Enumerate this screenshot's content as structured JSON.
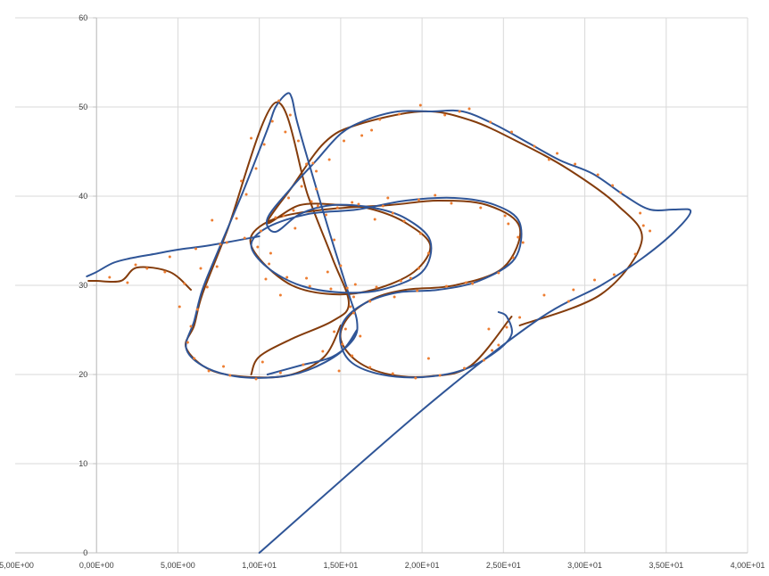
{
  "chart_data": {
    "type": "scatter",
    "title": "",
    "xlabel": "",
    "ylabel": "",
    "xlim": [
      -5,
      40
    ],
    "ylim": [
      0,
      60
    ],
    "grid": true,
    "legend": "none",
    "x_ticks": [
      -5,
      0,
      5,
      10,
      15,
      20,
      25,
      30,
      35,
      40
    ],
    "x_tick_labels": [
      "-5,00E+00",
      "0,00E+00",
      "5,00E+00",
      "1,00E+01",
      "1,50E+01",
      "2,00E+01",
      "2,50E+01",
      "3,00E+01",
      "3,50E+01",
      "4,00E+01"
    ],
    "y_ticks": [
      0,
      10,
      20,
      30,
      40,
      50,
      60
    ],
    "y_tick_labels": [
      "0",
      "10",
      "20",
      "30",
      "40",
      "50",
      "60"
    ],
    "colors": {
      "points": "#ed7d31",
      "smooth_line": "#843c0c",
      "noisy_line": "#2f5597",
      "grid": "#d9d9d9",
      "axis": "#bfbfbf"
    },
    "series": [
      {
        "style": "line",
        "color": "#843c0c",
        "points": [
          [
            26,
            25.5
          ],
          [
            31,
            29
          ],
          [
            33.5,
            35
          ],
          [
            32,
            39
          ],
          [
            29,
            43
          ],
          [
            26,
            46
          ],
          [
            23,
            48.5
          ],
          [
            20,
            49.5
          ],
          [
            16,
            48
          ],
          [
            14,
            46
          ],
          [
            12,
            41
          ],
          [
            10.5,
            37
          ],
          [
            12.5,
            39
          ],
          [
            15,
            39
          ],
          [
            17,
            38.5
          ],
          [
            19,
            37
          ],
          [
            20.5,
            34.5
          ],
          [
            19.5,
            31.5
          ],
          [
            17,
            29.5
          ],
          [
            14.5,
            29
          ],
          [
            12,
            30
          ],
          [
            10,
            33
          ],
          [
            9.5,
            35.5
          ],
          [
            11,
            37.5
          ],
          [
            14,
            38.5
          ],
          [
            18,
            39
          ],
          [
            21,
            39.5
          ],
          [
            24,
            39
          ],
          [
            26,
            36.5
          ],
          [
            25,
            32
          ],
          [
            22,
            30
          ],
          [
            19,
            29.5
          ],
          [
            17,
            28.5
          ],
          [
            15.5,
            26.5
          ],
          [
            15,
            24
          ],
          [
            16,
            21.5
          ],
          [
            18,
            20
          ],
          [
            20.5,
            19.8
          ],
          [
            23,
            21
          ],
          [
            25.5,
            26.5
          ],
          [
            null,
            null
          ],
          [
            15,
            25.5
          ],
          [
            14,
            22
          ],
          [
            12,
            20
          ],
          [
            9.5,
            19.7
          ],
          [
            7,
            20.5
          ],
          [
            5.5,
            23
          ],
          [
            6,
            25.5
          ],
          [
            6.5,
            29
          ],
          [
            8,
            36
          ],
          [
            11,
            50.5
          ],
          [
            13,
            40
          ],
          [
            14.5,
            33
          ],
          [
            15.5,
            28
          ],
          [
            14.5,
            26
          ],
          [
            12,
            24
          ],
          [
            10,
            22
          ],
          [
            9.5,
            20
          ],
          [
            null,
            null
          ],
          [
            5.8,
            29.5
          ],
          [
            4.5,
            31.5
          ],
          [
            2.5,
            32
          ],
          [
            1.5,
            30.5
          ],
          [
            0,
            30.5
          ],
          [
            -0.5,
            30.5
          ]
        ]
      },
      {
        "style": "line",
        "color": "#2f5597",
        "points": [
          [
            10,
            0
          ],
          [
            20,
            16
          ],
          [
            27,
            26
          ],
          [
            31,
            30
          ],
          [
            33.5,
            33
          ],
          [
            35.5,
            36
          ],
          [
            36.5,
            38.3
          ],
          [
            35.5,
            38.5
          ],
          [
            34,
            38.5
          ],
          [
            32.5,
            40
          ],
          [
            30.5,
            42.5
          ],
          [
            28.5,
            44
          ],
          [
            26.5,
            46
          ],
          [
            24.5,
            48
          ],
          [
            22.5,
            49.5
          ],
          [
            20.5,
            49.5
          ],
          [
            18.5,
            49.5
          ],
          [
            16.5,
            48.5
          ],
          [
            15,
            47
          ],
          [
            13.5,
            44
          ],
          [
            12,
            41
          ],
          [
            10.5,
            37.5
          ],
          [
            11,
            36
          ],
          [
            12.5,
            38
          ],
          [
            14.5,
            39
          ],
          [
            17,
            38.7
          ],
          [
            19,
            37.5
          ],
          [
            20.5,
            35
          ],
          [
            20,
            31.5
          ],
          [
            17.5,
            29.5
          ],
          [
            15,
            29.2
          ],
          [
            12.5,
            30
          ],
          [
            10.5,
            32
          ],
          [
            9.5,
            34.5
          ],
          [
            10.5,
            36.5
          ],
          [
            13,
            38
          ],
          [
            16,
            38.5
          ],
          [
            19,
            39.5
          ],
          [
            22,
            39.8
          ],
          [
            24.5,
            39
          ],
          [
            26,
            37
          ],
          [
            25.7,
            33
          ],
          [
            23.5,
            30.5
          ],
          [
            21,
            29.5
          ],
          [
            18.5,
            29.2
          ],
          [
            16.5,
            28
          ],
          [
            15.2,
            26
          ],
          [
            15,
            23.5
          ],
          [
            15.7,
            21.3
          ],
          [
            17.5,
            20
          ],
          [
            20,
            19.7
          ],
          [
            22.5,
            20.5
          ],
          [
            24.5,
            22.5
          ],
          [
            25.5,
            24.5
          ],
          [
            25.2,
            26.5
          ],
          [
            24.7,
            27
          ],
          [
            null,
            null
          ],
          [
            16,
            25
          ],
          [
            15,
            22.5
          ],
          [
            13,
            20.5
          ],
          [
            11,
            19.7
          ],
          [
            8.5,
            19.8
          ],
          [
            6.5,
            21
          ],
          [
            5.5,
            23
          ],
          [
            6,
            26
          ],
          [
            6.5,
            29.5
          ],
          [
            7.5,
            34
          ],
          [
            9,
            40.5
          ],
          [
            10.5,
            47.5
          ],
          [
            11,
            50
          ],
          [
            11.7,
            51.5
          ],
          [
            12,
            51
          ],
          [
            12.3,
            48.5
          ],
          [
            13,
            44
          ],
          [
            14.3,
            36
          ],
          [
            15.5,
            29
          ],
          [
            16,
            26
          ],
          [
            15.8,
            24
          ],
          [
            14.5,
            22
          ],
          [
            12.5,
            21
          ],
          [
            10.5,
            20
          ],
          [
            null,
            null
          ],
          [
            10,
            35.5
          ],
          [
            7,
            34.5
          ],
          [
            5,
            34
          ],
          [
            3.5,
            33.5
          ],
          [
            2,
            33
          ],
          [
            1,
            32.5
          ],
          [
            0,
            31.5
          ],
          [
            -0.6,
            31
          ]
        ]
      },
      {
        "style": "points",
        "color": "#ed7d31",
        "values": [
          [
            26,
            26.4
          ],
          [
            27.5,
            28.9
          ],
          [
            29,
            28.2
          ],
          [
            30.6,
            30.6
          ],
          [
            31.8,
            31.2
          ],
          [
            33.1,
            33.5
          ],
          [
            34,
            36.1
          ],
          [
            33.4,
            38.1
          ],
          [
            32.2,
            40.4
          ],
          [
            30.8,
            42.4
          ],
          [
            29.4,
            43.6
          ],
          [
            28.3,
            44.8
          ],
          [
            26.9,
            45.6
          ],
          [
            25.5,
            47.2
          ],
          [
            24.2,
            48.3
          ],
          [
            22.9,
            49.8
          ],
          [
            21.4,
            49.1
          ],
          [
            19.9,
            50.2
          ],
          [
            18.6,
            49.2
          ],
          [
            17.4,
            48.6
          ],
          [
            16.3,
            46.8
          ],
          [
            15.2,
            46.2
          ],
          [
            14.3,
            44.1
          ],
          [
            13.5,
            42.8
          ],
          [
            12.6,
            41.1
          ],
          [
            11.8,
            39.8
          ],
          [
            11,
            37.6
          ],
          [
            12.1,
            38.4
          ],
          [
            13.2,
            39.4
          ],
          [
            14.8,
            38.7
          ],
          [
            16.1,
            39.1
          ],
          [
            17.6,
            38.9
          ],
          [
            18.9,
            37.2
          ],
          [
            19.9,
            35.8
          ],
          [
            20.4,
            33.6
          ],
          [
            19.8,
            31.9
          ],
          [
            18.7,
            30.5
          ],
          [
            17.2,
            29.8
          ],
          [
            15.8,
            28.7
          ],
          [
            14.4,
            29.6
          ],
          [
            13.1,
            29.9
          ],
          [
            11.7,
            30.9
          ],
          [
            10.6,
            32.4
          ],
          [
            9.9,
            34.3
          ],
          [
            10.1,
            36.1
          ],
          [
            11.5,
            37.8
          ],
          [
            13.6,
            38.9
          ],
          [
            15.7,
            39.3
          ],
          [
            17.9,
            39.8
          ],
          [
            19.8,
            39.6
          ],
          [
            21.8,
            39.2
          ],
          [
            23.6,
            38.7
          ],
          [
            25.1,
            37.8
          ],
          [
            25.9,
            35.4
          ],
          [
            25.6,
            33.1
          ],
          [
            24.7,
            31.4
          ],
          [
            23.1,
            30.2
          ],
          [
            21.5,
            29.9
          ],
          [
            19.7,
            29.4
          ],
          [
            18.3,
            28.7
          ],
          [
            16.8,
            28.2
          ],
          [
            15.8,
            26.9
          ],
          [
            15.3,
            25.1
          ],
          [
            15.1,
            23.4
          ],
          [
            15.7,
            22.1
          ],
          [
            16.8,
            20.8
          ],
          [
            18.2,
            20.1
          ],
          [
            19.6,
            19.6
          ],
          [
            21.1,
            19.9
          ],
          [
            22.6,
            20.7
          ],
          [
            23.8,
            21.6
          ],
          [
            24.7,
            23.3
          ],
          [
            25.2,
            25.3
          ],
          [
            14.6,
            24.8
          ],
          [
            13.9,
            22.6
          ],
          [
            12.7,
            21.1
          ],
          [
            11.3,
            20.2
          ],
          [
            9.8,
            19.5
          ],
          [
            8.2,
            19.9
          ],
          [
            6.9,
            20.4
          ],
          [
            6,
            21.8
          ],
          [
            5.6,
            23.6
          ],
          [
            5.8,
            25.4
          ],
          [
            6.2,
            27.3
          ],
          [
            6.8,
            29.8
          ],
          [
            7.4,
            32.1
          ],
          [
            8,
            34.8
          ],
          [
            8.6,
            37.5
          ],
          [
            9.2,
            40.2
          ],
          [
            9.8,
            43.1
          ],
          [
            10.3,
            45.8
          ],
          [
            10.8,
            48.4
          ],
          [
            11.2,
            50.7
          ],
          [
            11.9,
            49.1
          ],
          [
            12.4,
            46.2
          ],
          [
            12.9,
            43.6
          ],
          [
            13.5,
            40.8
          ],
          [
            14.1,
            37.9
          ],
          [
            14.6,
            35.1
          ],
          [
            15,
            32.2
          ],
          [
            15.4,
            29.7
          ],
          [
            15.6,
            27.6
          ],
          [
            5.4,
            30.2
          ],
          [
            4.2,
            31.5
          ],
          [
            3.1,
            31.9
          ],
          [
            1.9,
            30.3
          ],
          [
            0.8,
            30.9
          ],
          [
            2.4,
            32.3
          ],
          [
            9.1,
            35.3
          ],
          [
            7.6,
            34.6
          ],
          [
            6.1,
            34.1
          ],
          [
            4.5,
            33.2
          ],
          [
            18.2,
            38.1
          ],
          [
            22.3,
            49.5
          ],
          [
            27.8,
            44.1
          ],
          [
            31.7,
            41.2
          ],
          [
            33.6,
            36.7
          ],
          [
            29.3,
            29.5
          ],
          [
            24.1,
            25.1
          ],
          [
            16.9,
            47.4
          ],
          [
            13.3,
            43.7
          ],
          [
            10.2,
            21.4
          ],
          [
            7.8,
            20.9
          ],
          [
            5.1,
            27.6
          ],
          [
            6.4,
            31.9
          ],
          [
            8.9,
            41.7
          ],
          [
            11.6,
            47.2
          ],
          [
            12.2,
            36.4
          ],
          [
            14.2,
            31.5
          ],
          [
            19.3,
            30.8
          ],
          [
            22.7,
            30.3
          ],
          [
            25.3,
            36.9
          ],
          [
            20.8,
            40.1
          ],
          [
            17.1,
            37.4
          ],
          [
            15.9,
            30.1
          ],
          [
            16.2,
            24.3
          ],
          [
            20.4,
            21.8
          ],
          [
            24.3,
            22.7
          ],
          [
            26.2,
            34.8
          ],
          [
            10.7,
            33.6
          ],
          [
            12.9,
            30.8
          ],
          [
            11.3,
            28.9
          ],
          [
            14.9,
            20.4
          ],
          [
            7.1,
            37.3
          ],
          [
            9.5,
            46.5
          ],
          [
            10.4,
            30.7
          ]
        ]
      }
    ]
  }
}
